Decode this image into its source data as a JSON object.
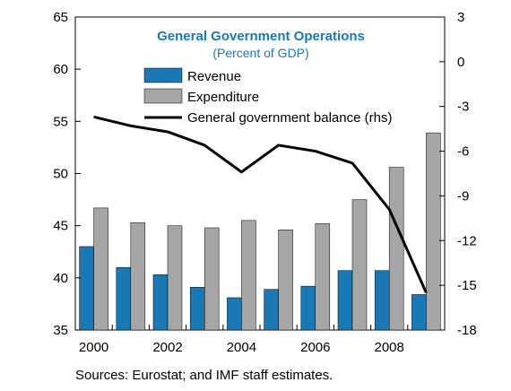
{
  "chart_data": {
    "type": "bar",
    "title": "General Government Operations",
    "subtitle": "(Percent of GDP)",
    "categories": [
      "2000",
      "2001",
      "2002",
      "2003",
      "2004",
      "2005",
      "2006",
      "2007",
      "2008",
      "2009"
    ],
    "x_tick_labels": [
      "2000",
      "2002",
      "2004",
      "2006",
      "2008"
    ],
    "series": [
      {
        "name": "Revenue",
        "type": "bar",
        "axis": "left",
        "color": "#1a78b4",
        "values": [
          43.0,
          41.0,
          40.3,
          39.1,
          38.1,
          38.9,
          39.2,
          40.7,
          40.7,
          38.4
        ]
      },
      {
        "name": "Expenditure",
        "type": "bar",
        "axis": "left",
        "color": "#a6a6a6",
        "values": [
          46.7,
          45.3,
          45.0,
          44.8,
          45.5,
          44.6,
          45.2,
          47.5,
          50.6,
          53.9
        ]
      },
      {
        "name": "General government balance (rhs)",
        "type": "line",
        "axis": "right",
        "color": "#000000",
        "values": [
          -3.7,
          -4.3,
          -4.7,
          -5.6,
          -7.4,
          -5.6,
          -6.0,
          -6.8,
          -9.9,
          -15.5
        ]
      }
    ],
    "y_left": {
      "min": 35,
      "max": 65,
      "ticks": [
        35,
        40,
        45,
        50,
        55,
        60,
        65
      ]
    },
    "y_right": {
      "min": -18,
      "max": 3,
      "ticks": [
        3,
        0,
        -3,
        -6,
        -9,
        -12,
        -15,
        -18
      ]
    },
    "grid": false,
    "legend_position": "top-left"
  },
  "source_note": "Sources: Eurostat; and IMF staff estimates."
}
